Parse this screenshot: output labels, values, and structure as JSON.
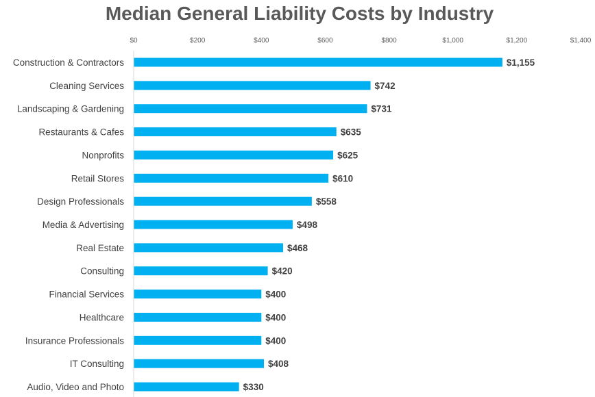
{
  "chart_data": {
    "type": "bar",
    "orientation": "horizontal",
    "title": "Median General Liability Costs by Industry",
    "xlabel": "",
    "ylabel": "",
    "categories": [
      "Construction & Contractors",
      "Cleaning Services",
      "Landscaping & Gardening",
      "Restaurants & Cafes",
      "Nonprofits",
      "Retail Stores",
      "Design Professionals",
      "Media & Advertising",
      "Real Estate",
      "Consulting",
      "Financial Services",
      "Healthcare",
      "Insurance Professionals",
      "IT Consulting",
      "Audio, Video and Photo"
    ],
    "values": [
      1155,
      742,
      731,
      635,
      625,
      610,
      558,
      498,
      468,
      420,
      400,
      400,
      400,
      408,
      330
    ],
    "data_labels": [
      "$1,155",
      "$742",
      "$731",
      "$635",
      "$625",
      "$610",
      "$558",
      "$498",
      "$468",
      "$420",
      "$400",
      "$400",
      "$400",
      "$408",
      "$330"
    ],
    "xlim": [
      0,
      1400
    ],
    "x_ticks": [
      0,
      200,
      400,
      600,
      800,
      1000,
      1200,
      1400
    ],
    "x_tick_labels": [
      "$0",
      "$200",
      "$400",
      "$600",
      "$800",
      "$1,000",
      "$1,200",
      "$1,400"
    ],
    "x_axis_position": "top",
    "grid": false,
    "legend": "none",
    "colors": {
      "bar": "#00B0F0",
      "title": "#595959",
      "text": "#404040",
      "axis": "#D9D9D9"
    }
  }
}
